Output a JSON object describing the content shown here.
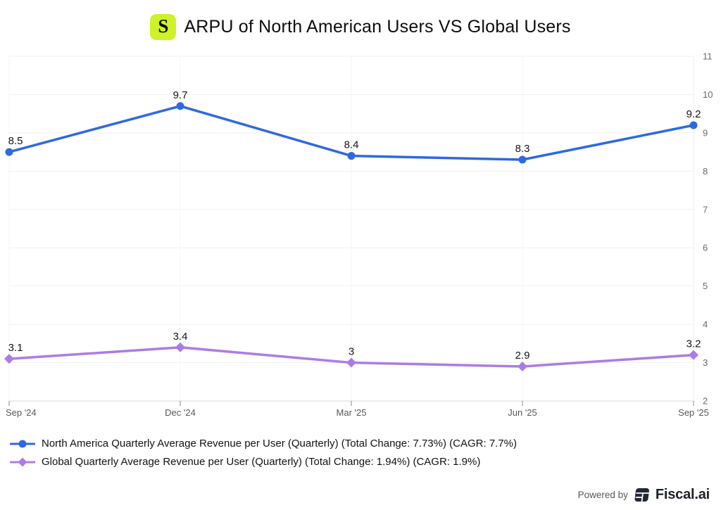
{
  "header": {
    "logo_letter": "S",
    "title": "ARPU of North American Users VS Global Users"
  },
  "chart_data": {
    "type": "line",
    "title": "ARPU of North American Users VS Global Users",
    "categories": [
      "Sep '24",
      "Dec '24",
      "Mar '25",
      "Jun '25",
      "Sep '25"
    ],
    "series": [
      {
        "name": "North America Quarterly Average Revenue per User (Quarterly) (Total Change: 7.73%) (CAGR: 7.7%)",
        "values": [
          8.5,
          9.7,
          8.4,
          8.3,
          9.2
        ],
        "labels": [
          "8.5",
          "9.7",
          "8.4",
          "8.3",
          "9.2"
        ],
        "color": "#2d69e1",
        "marker": "circle"
      },
      {
        "name": "Global Quarterly Average Revenue per User (Quarterly) (Total Change: 1.94%) (CAGR: 1.9%)",
        "values": [
          3.1,
          3.4,
          3,
          2.9,
          3.2
        ],
        "labels": [
          "3.1",
          "3.4",
          "3",
          "2.9",
          "3.2"
        ],
        "color": "#ab7ce6",
        "marker": "diamond"
      }
    ],
    "ylim": [
      2,
      11
    ],
    "y_ticks": [
      2,
      3,
      4,
      5,
      6,
      7,
      8,
      9,
      10,
      11
    ],
    "grid": true,
    "legend_position": "bottom-left",
    "y_axis_side": "right"
  },
  "colors": {
    "logo_bg": "#cdf227",
    "grid_h": "#f1f1f1",
    "grid_v": "#f5f5f5",
    "axis_line": "#d8d8d8",
    "right_border": "#ececec",
    "tick": "#8a8a8a"
  },
  "footer": {
    "powered_by": "Powered by",
    "brand": "Fiscal.ai"
  }
}
